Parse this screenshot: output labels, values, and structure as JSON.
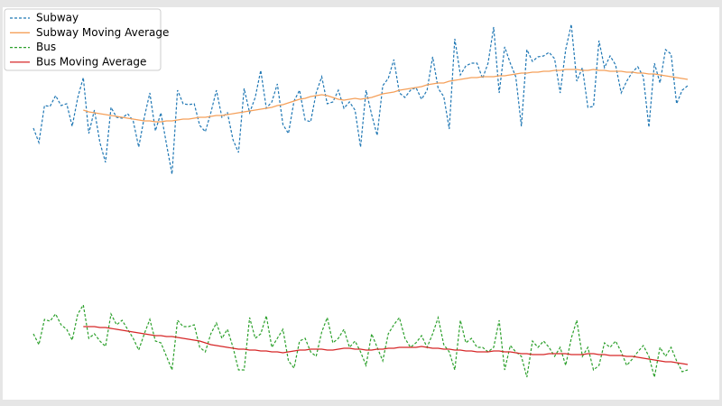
{
  "chart_data": {
    "type": "line",
    "ylim": [
      7,
      442
    ],
    "legend": "upper left",
    "series": [
      {
        "name": "Subway",
        "color": "#1f77b4",
        "dash": true,
        "values": [
          308,
          292,
          333,
          332,
          344,
          333,
          335,
          310,
          342,
          364,
          302,
          328,
          292,
          270,
          331,
          320,
          319,
          324,
          316,
          287,
          320,
          347,
          305,
          325,
          290,
          257,
          350,
          335,
          334,
          335,
          311,
          304,
          325,
          350,
          320,
          325,
          295,
          281,
          352,
          325,
          342,
          372,
          330,
          337,
          357,
          312,
          302,
          338,
          350,
          317,
          315,
          347,
          365,
          335,
          337,
          350,
          330,
          337,
          328,
          287,
          350,
          323,
          300,
          355,
          363,
          384,
          347,
          342,
          350,
          353,
          340,
          350,
          387,
          352,
          343,
          307,
          407,
          367,
          377,
          380,
          380,
          363,
          380,
          420,
          347,
          398,
          380,
          365,
          310,
          395,
          382,
          387,
          388,
          392,
          385,
          347,
          395,
          423,
          360,
          375,
          331,
          332,
          405,
          375,
          388,
          378,
          347,
          360,
          370,
          376,
          365,
          309,
          380,
          358,
          395,
          390,
          335,
          350,
          355
        ]
      },
      {
        "name": "Subway Moving Average",
        "color": "#f5a05a",
        "dash": false,
        "values": [
          null,
          null,
          null,
          null,
          null,
          null,
          null,
          null,
          null,
          328,
          326,
          325,
          324,
          323,
          322,
          321,
          320,
          319,
          318,
          317,
          316,
          316,
          315,
          315,
          316,
          316,
          317,
          318,
          318,
          319,
          320,
          320,
          321,
          322,
          322,
          323,
          324,
          325,
          326,
          327,
          328,
          329,
          330,
          331,
          333,
          334,
          336,
          338,
          340,
          341,
          343,
          344,
          345,
          344,
          342,
          340,
          339,
          340,
          341,
          340,
          341,
          342,
          344,
          346,
          347,
          348,
          350,
          351,
          352,
          353,
          354,
          356,
          357,
          358,
          358,
          360,
          361,
          362,
          363,
          364,
          364,
          365,
          365,
          365,
          366,
          366,
          367,
          368,
          369,
          369,
          370,
          370,
          371,
          371,
          372,
          372,
          373,
          373,
          373,
          372,
          372,
          373,
          372,
          372,
          371,
          371,
          371,
          370,
          370,
          369,
          369,
          368,
          368,
          367,
          366,
          365,
          364,
          363,
          362
        ]
      },
      {
        "name": "Bus",
        "color": "#2ca02c",
        "dash": true,
        "values": [
          80,
          68,
          96,
          94,
          102,
          90,
          85,
          73,
          102,
          112,
          75,
          80,
          72,
          66,
          102,
          90,
          95,
          85,
          75,
          62,
          80,
          96,
          72,
          70,
          55,
          40,
          95,
          88,
          88,
          90,
          65,
          60,
          80,
          92,
          75,
          85,
          65,
          40,
          40,
          98,
          75,
          80,
          100,
          65,
          75,
          85,
          50,
          42,
          72,
          75,
          60,
          55,
          82,
          98,
          70,
          75,
          85,
          65,
          72,
          60,
          45,
          80,
          65,
          50,
          80,
          90,
          98,
          75,
          65,
          70,
          78,
          65,
          80,
          98,
          68,
          60,
          40,
          95,
          70,
          75,
          65,
          65,
          60,
          65,
          95,
          40,
          67,
          60,
          55,
          32,
          72,
          65,
          72,
          65,
          55,
          65,
          45,
          75,
          95,
          55,
          65,
          40,
          45,
          70,
          65,
          72,
          60,
          45,
          52,
          60,
          67,
          55,
          32,
          65,
          55,
          65,
          50,
          38,
          40
        ]
      },
      {
        "name": "Bus Moving Average",
        "color": "#d62728",
        "dash": false,
        "values": [
          null,
          null,
          null,
          null,
          null,
          null,
          null,
          null,
          null,
          88,
          88,
          88,
          87,
          87,
          86,
          85,
          84,
          83,
          82,
          81,
          80,
          79,
          78,
          78,
          77,
          77,
          76,
          75,
          74,
          73,
          72,
          70,
          68,
          67,
          66,
          65,
          64,
          63,
          63,
          62,
          62,
          61,
          61,
          60,
          60,
          59,
          60,
          61,
          62,
          62,
          63,
          63,
          63,
          62,
          62,
          63,
          64,
          64,
          63,
          63,
          62,
          62,
          63,
          63,
          64,
          64,
          65,
          65,
          65,
          65,
          66,
          65,
          64,
          64,
          63,
          63,
          62,
          62,
          61,
          61,
          60,
          60,
          60,
          61,
          61,
          60,
          60,
          59,
          58,
          58,
          57,
          57,
          57,
          58,
          58,
          58,
          58,
          57,
          57,
          57,
          58,
          58,
          57,
          57,
          56,
          56,
          56,
          55,
          55,
          54,
          53,
          52,
          51,
          50,
          49,
          49,
          48,
          47,
          46
        ]
      }
    ]
  }
}
